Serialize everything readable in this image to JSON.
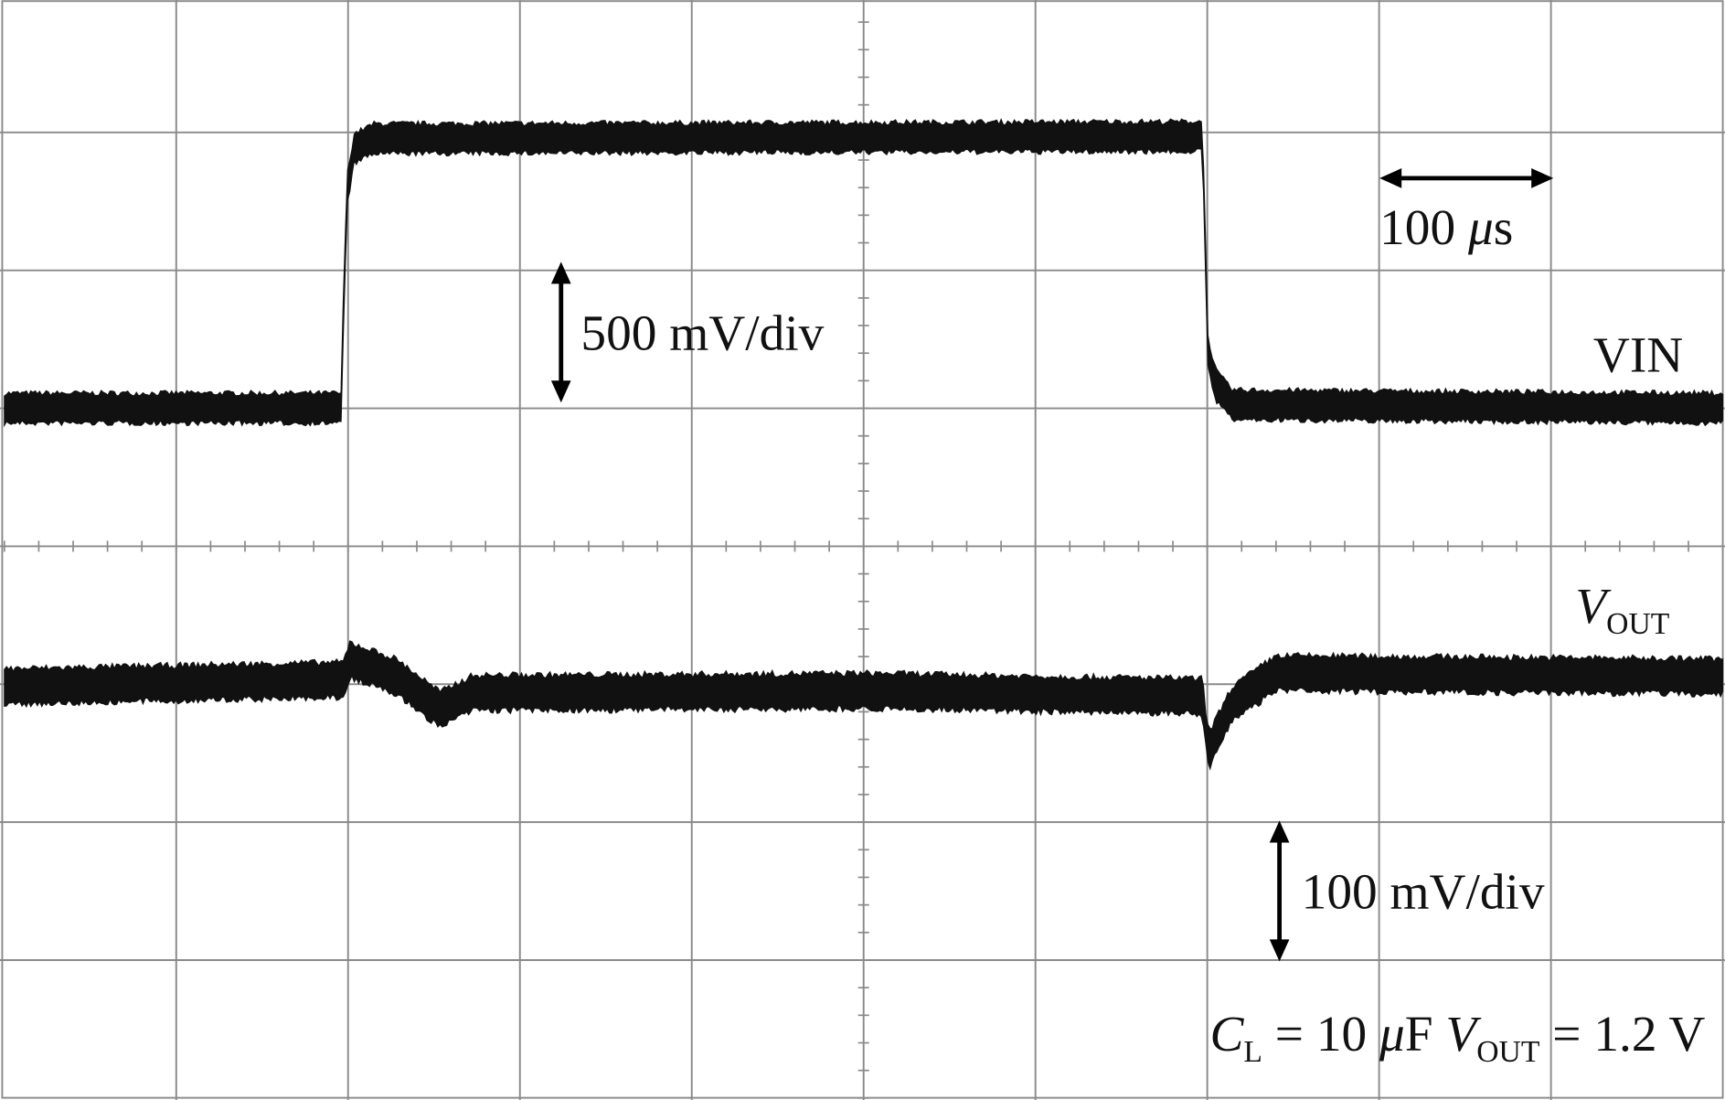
{
  "labels": {
    "time_scale": [
      "100 ",
      "μ",
      "s"
    ],
    "vin_scale": "500 mV/div",
    "vin": "VIN",
    "vout": [
      "V",
      "OUT"
    ],
    "vout_scale": "100 mV/div",
    "conditions": [
      "C",
      "L",
      " = 10 ",
      "μ",
      "F ",
      "V",
      "OUT",
      " = 1.2 V"
    ]
  }
}
